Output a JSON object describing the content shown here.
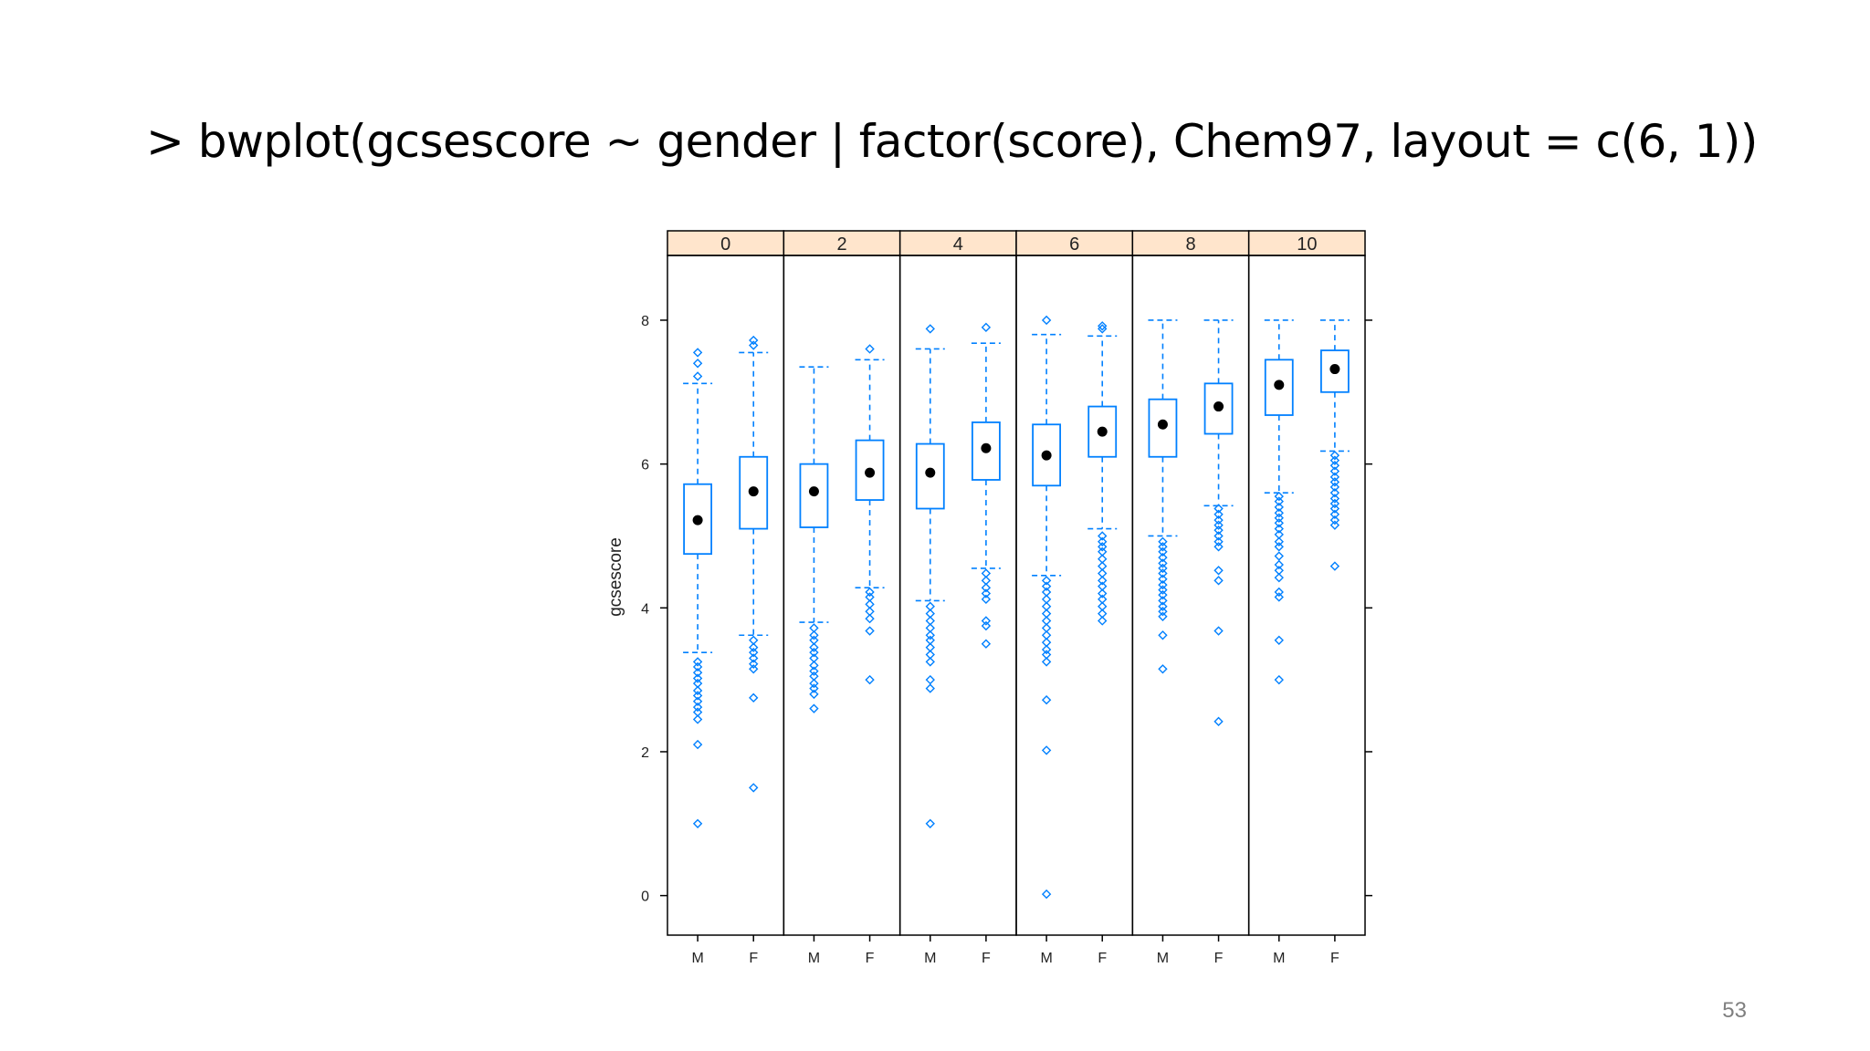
{
  "slide": {
    "title": "> bwplot(gcsescore ~ gender | factor(score), Chem97, layout = c(6, 1))",
    "page_number": "53"
  },
  "colors": {
    "box": "#0080ff",
    "median_dot": "#000000",
    "strip_bg": "#ffe5cc",
    "frame": "#000000"
  },
  "chart_data": {
    "type": "box",
    "ylabel": "gcsescore",
    "ylim": [
      -0.55,
      8.9
    ],
    "yticks": [
      0,
      2,
      4,
      6,
      8
    ],
    "groups": [
      "M",
      "F"
    ],
    "panels": [
      {
        "label": "0",
        "boxes": [
          {
            "group": "M",
            "whisker_low": 3.38,
            "q1": 4.75,
            "median": 5.22,
            "q3": 5.72,
            "whisker_high": 7.12,
            "outliers": [
              7.55,
              7.4,
              7.22,
              3.25,
              3.18,
              3.1,
              3.02,
              2.95,
              2.85,
              2.78,
              2.7,
              2.62,
              2.55,
              2.45,
              2.1,
              1.0
            ]
          },
          {
            "group": "F",
            "whisker_low": 3.62,
            "q1": 5.1,
            "median": 5.62,
            "q3": 6.1,
            "whisker_high": 7.55,
            "outliers": [
              7.72,
              7.65,
              3.55,
              3.45,
              3.38,
              3.3,
              3.22,
              3.15,
              2.75,
              1.5
            ]
          }
        ]
      },
      {
        "label": "2",
        "boxes": [
          {
            "group": "M",
            "whisker_low": 3.8,
            "q1": 5.12,
            "median": 5.62,
            "q3": 6.0,
            "whisker_high": 7.35,
            "outliers": [
              3.72,
              3.62,
              3.55,
              3.45,
              3.38,
              3.3,
              3.2,
              3.12,
              3.05,
              2.95,
              2.88,
              2.8,
              2.6
            ]
          },
          {
            "group": "F",
            "whisker_low": 4.28,
            "q1": 5.5,
            "median": 5.88,
            "q3": 6.33,
            "whisker_high": 7.45,
            "outliers": [
              7.6,
              4.22,
              4.15,
              4.05,
              3.95,
              3.85,
              3.68,
              3.0
            ]
          }
        ]
      },
      {
        "label": "4",
        "boxes": [
          {
            "group": "M",
            "whisker_low": 4.1,
            "q1": 5.38,
            "median": 5.88,
            "q3": 6.28,
            "whisker_high": 7.6,
            "outliers": [
              7.88,
              4.02,
              3.92,
              3.82,
              3.72,
              3.62,
              3.55,
              3.45,
              3.35,
              3.25,
              3.0,
              2.88,
              1.0
            ]
          },
          {
            "group": "F",
            "whisker_low": 4.55,
            "q1": 5.78,
            "median": 6.22,
            "q3": 6.58,
            "whisker_high": 7.68,
            "outliers": [
              7.9,
              4.48,
              4.38,
              4.28,
              4.2,
              4.12,
              3.82,
              3.75,
              3.5
            ]
          }
        ]
      },
      {
        "label": "6",
        "boxes": [
          {
            "group": "M",
            "whisker_low": 4.45,
            "q1": 5.7,
            "median": 6.12,
            "q3": 6.55,
            "whisker_high": 7.8,
            "outliers": [
              8.0,
              4.38,
              4.3,
              4.22,
              4.12,
              4.02,
              3.92,
              3.82,
              3.72,
              3.62,
              3.52,
              3.42,
              3.35,
              3.25,
              2.72,
              2.02,
              0.02
            ]
          },
          {
            "group": "F",
            "whisker_low": 5.1,
            "q1": 6.1,
            "median": 6.45,
            "q3": 6.8,
            "whisker_high": 7.78,
            "outliers": [
              7.92,
              7.88,
              5.0,
              4.92,
              4.85,
              4.78,
              4.68,
              4.58,
              4.48,
              4.38,
              4.3,
              4.2,
              4.12,
              4.02,
              3.92,
              3.82
            ]
          }
        ]
      },
      {
        "label": "8",
        "boxes": [
          {
            "group": "M",
            "whisker_low": 5.0,
            "q1": 6.1,
            "median": 6.55,
            "q3": 6.9,
            "whisker_high": 8.0,
            "outliers": [
              4.92,
              4.85,
              4.78,
              4.7,
              4.62,
              4.55,
              4.48,
              4.4,
              4.32,
              4.25,
              4.18,
              4.1,
              4.02,
              3.95,
              3.88,
              3.62,
              3.15
            ]
          },
          {
            "group": "F",
            "whisker_low": 5.42,
            "q1": 6.42,
            "median": 6.8,
            "q3": 7.12,
            "whisker_high": 8.0,
            "outliers": [
              5.38,
              5.3,
              5.22,
              5.15,
              5.08,
              5.0,
              4.92,
              4.85,
              4.52,
              4.38,
              3.68,
              2.42
            ]
          }
        ]
      },
      {
        "label": "10",
        "boxes": [
          {
            "group": "M",
            "whisker_low": 5.6,
            "q1": 6.68,
            "median": 7.1,
            "q3": 7.45,
            "whisker_high": 8.0,
            "outliers": [
              5.55,
              5.48,
              5.4,
              5.32,
              5.25,
              5.18,
              5.1,
              5.02,
              4.92,
              4.85,
              4.72,
              4.6,
              4.52,
              4.42,
              4.22,
              4.15,
              3.55,
              3.0
            ]
          },
          {
            "group": "F",
            "whisker_low": 6.18,
            "q1": 7.0,
            "median": 7.32,
            "q3": 7.58,
            "whisker_high": 8.0,
            "outliers": [
              6.12,
              6.05,
              5.98,
              5.9,
              5.82,
              5.75,
              5.68,
              5.6,
              5.52,
              5.45,
              5.38,
              5.3,
              5.22,
              5.15,
              4.58
            ]
          }
        ]
      }
    ]
  }
}
